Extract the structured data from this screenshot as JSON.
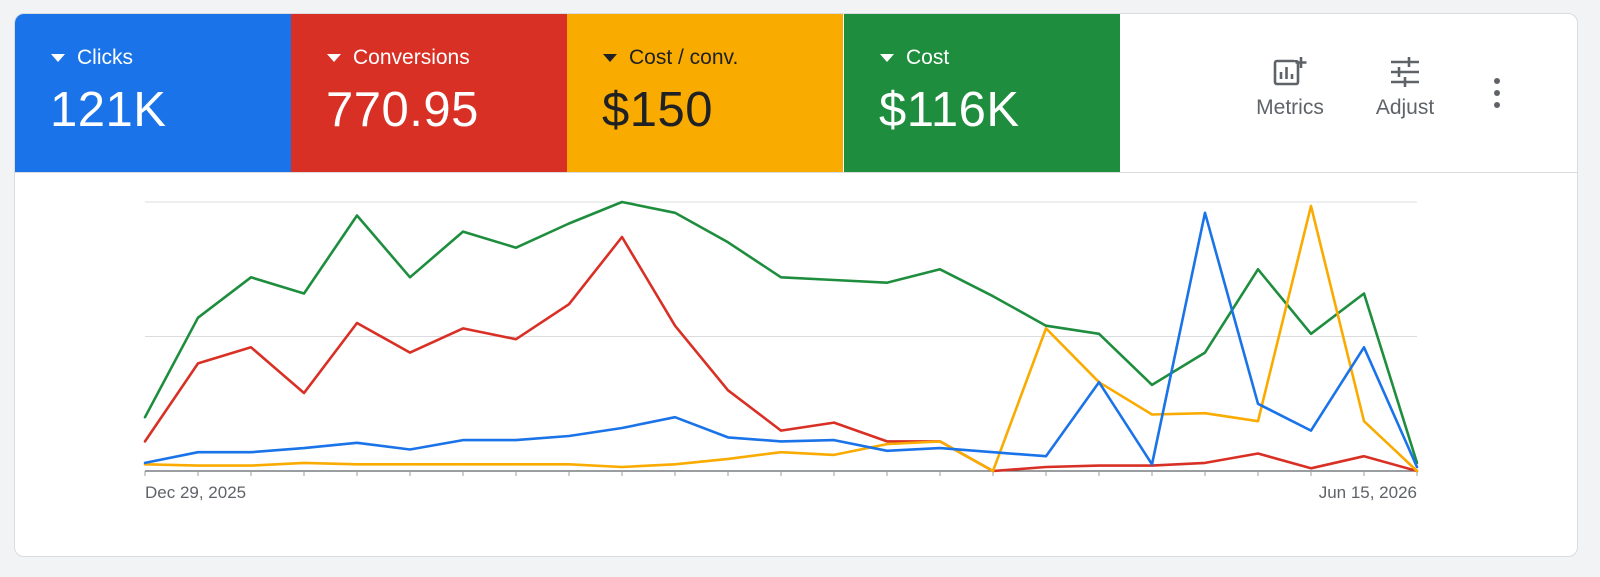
{
  "metrics": [
    {
      "label": "Clicks",
      "value": "121K",
      "color": "#1a73e8",
      "text_color": "#ffffff"
    },
    {
      "label": "Conversions",
      "value": "770.95",
      "color": "#d93025",
      "text_color": "#ffffff"
    },
    {
      "label": "Cost / conv.",
      "value": "$150",
      "color": "#f9ab00",
      "text_color": "#202124"
    },
    {
      "label": "Cost",
      "value": "$116K",
      "color": "#1e8e3e",
      "text_color": "#ffffff"
    }
  ],
  "toolbar": {
    "metrics_label": "Metrics",
    "adjust_label": "Adjust",
    "metrics_icon": "metrics-chart-plus-icon",
    "adjust_icon": "tune-sliders-icon",
    "more_icon": "more-vert-icon"
  },
  "chart_data": {
    "type": "line",
    "x_tick_labels": [
      "Dec 29, 2025",
      "Jun 15, 2026"
    ],
    "y_range": [
      0,
      100
    ],
    "grid": true,
    "series": [
      {
        "metric": "Cost",
        "color": "#1e8e3e",
        "values": [
          20,
          57,
          72,
          66,
          95,
          72,
          89,
          83,
          92,
          100,
          96,
          85,
          72,
          71,
          70,
          75,
          65,
          54,
          51,
          32,
          44,
          75,
          51,
          66,
          3
        ]
      },
      {
        "metric": "Conversions",
        "color": "#d93025",
        "values": [
          11,
          40,
          46,
          29,
          55,
          44,
          53,
          49,
          62,
          87,
          54,
          30,
          15,
          18,
          11,
          11,
          0,
          1.5,
          2,
          2,
          3,
          6.5,
          1,
          5.5,
          0
        ]
      },
      {
        "metric": "Cost / conv.",
        "color": "#f9ab00",
        "values": [
          2.5,
          2,
          2,
          3,
          2.5,
          2.5,
          2.5,
          2.5,
          2.5,
          1.5,
          2.5,
          4.5,
          7,
          6,
          10,
          11,
          0,
          53,
          33,
          21,
          21.5,
          18.5,
          98.5,
          18.5,
          0
        ]
      },
      {
        "metric": "Clicks",
        "color": "#1a73e8",
        "values": [
          3,
          7,
          7,
          8.5,
          10.5,
          8,
          11.5,
          11.5,
          13,
          16,
          20,
          12.5,
          11,
          11.5,
          7.5,
          8.5,
          7,
          5.5,
          33,
          2.5,
          96,
          25,
          15,
          46,
          1.5
        ]
      }
    ]
  }
}
